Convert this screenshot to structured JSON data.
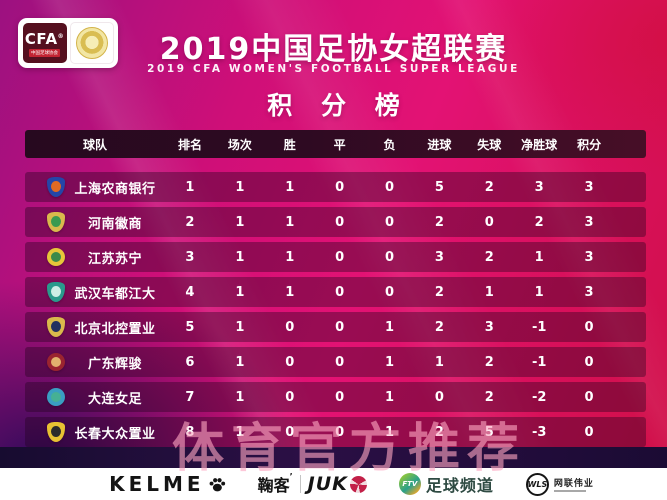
{
  "header": {
    "logo": {
      "cfa": "CFA",
      "reg": "®",
      "cfa_sub": "中国足球协会"
    },
    "title": "2019中国足协女超联赛",
    "subtitle": "2019 CFA WOMEN'S FOOTBALL SUPER LEAGUE",
    "section_title": "积 分 榜"
  },
  "chart_data": {
    "type": "table",
    "title": "2019中国足协女超联赛 积分榜",
    "columns": [
      "球队",
      "排名",
      "场次",
      "胜",
      "平",
      "负",
      "进球",
      "失球",
      "净胜球",
      "积分"
    ],
    "rows": [
      {
        "team": "上海农商银行",
        "values": [
          1,
          1,
          1,
          0,
          0,
          5,
          2,
          3,
          3
        ],
        "badge": {
          "shape": "shield",
          "outer": "#2446a8",
          "inner": "#e26a22"
        }
      },
      {
        "team": "河南徽商",
        "values": [
          2,
          1,
          1,
          0,
          0,
          2,
          0,
          2,
          3
        ],
        "badge": {
          "shape": "shield",
          "outer": "#d9b94c",
          "inner": "#3a9a50"
        }
      },
      {
        "team": "江苏苏宁",
        "values": [
          3,
          1,
          1,
          0,
          0,
          3,
          2,
          1,
          3
        ],
        "badge": {
          "shape": "circle",
          "outer": "#e6c63a",
          "inner": "#3a8a4a"
        }
      },
      {
        "team": "武汉车都江大",
        "values": [
          4,
          1,
          1,
          0,
          0,
          2,
          1,
          1,
          3
        ],
        "badge": {
          "shape": "shield",
          "outer": "#2a9a8c",
          "inner": "#cdeee6"
        }
      },
      {
        "team": "北京北控置业",
        "values": [
          5,
          1,
          0,
          0,
          1,
          2,
          3,
          -1,
          0
        ],
        "badge": {
          "shape": "shield",
          "outer": "#d9b94c",
          "inner": "#223060"
        }
      },
      {
        "team": "广东辉骏",
        "values": [
          6,
          1,
          0,
          0,
          1,
          1,
          2,
          -1,
          0
        ],
        "badge": {
          "shape": "circle",
          "outer": "#9a2430",
          "inner": "#e2b26e"
        }
      },
      {
        "team": "大连女足",
        "values": [
          7,
          1,
          0,
          0,
          1,
          0,
          2,
          -2,
          0
        ],
        "badge": {
          "shape": "circle",
          "outer": "#3a9ec2",
          "inner": "#46b094"
        }
      },
      {
        "team": "长春大众置业",
        "values": [
          8,
          1,
          0,
          0,
          1,
          2,
          5,
          -3,
          0
        ],
        "badge": {
          "shape": "shield",
          "outer": "#e8c233",
          "inner": "#2b2b2b"
        }
      }
    ]
  },
  "watermark": "体育官方推荐",
  "footer": {
    "kelme": "KELME",
    "juke_cn": "鞠客",
    "juke_mark": "’",
    "juke_en": "JUK",
    "ftv_abbr": "FTV",
    "ftv_text": "足球频道",
    "wls_abbr": "WLS",
    "wls_text": "网联伟业"
  },
  "colors": {
    "accent_magenta": "#e31274",
    "accent_crimson": "#cf0f46",
    "header_band": "#2e0a22",
    "footer_bg": "#ffffff",
    "watermark_pink": "#fba5c0"
  }
}
